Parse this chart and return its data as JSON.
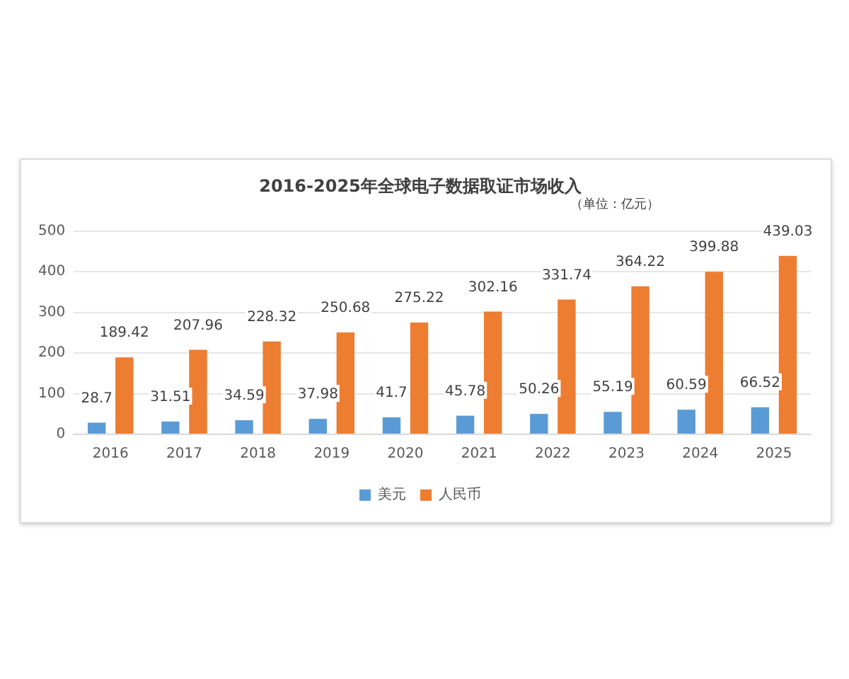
{
  "chart_data": {
    "type": "bar",
    "title": "2016-2025年全球电子数据取证市场收入",
    "annotations": [
      "（单位：亿元）"
    ],
    "categories": [
      "2016",
      "2017",
      "2018",
      "2019",
      "2020",
      "2021",
      "2022",
      "2023",
      "2024",
      "2025"
    ],
    "series": [
      {
        "name": "美元",
        "color": "#5b9bd5",
        "values": [
          28.7,
          31.51,
          34.59,
          37.98,
          41.7,
          45.78,
          50.26,
          55.19,
          60.59,
          66.52
        ]
      },
      {
        "name": "人民币",
        "color": "#ed7d31",
        "values": [
          189.42,
          207.96,
          228.32,
          250.68,
          275.22,
          302.16,
          331.74,
          364.22,
          399.88,
          439.03
        ]
      }
    ],
    "ylim": [
      0,
      500
    ],
    "yticks": [
      0,
      100,
      200,
      300,
      400,
      500
    ],
    "grid": "y",
    "legend": "bottom",
    "data_labels": true
  }
}
